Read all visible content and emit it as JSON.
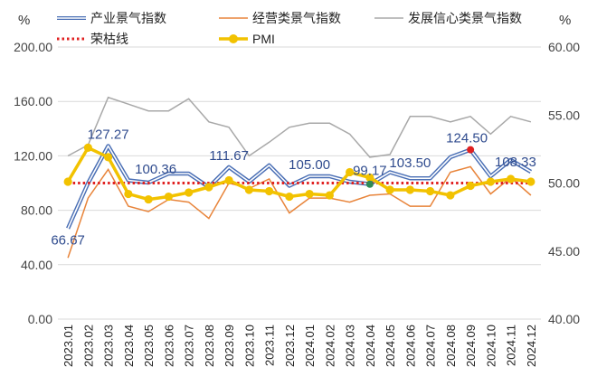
{
  "chart_data": {
    "type": "line",
    "title": "",
    "x": [
      "2023.01",
      "2023.02",
      "2023.03",
      "2023.04",
      "2023.05",
      "2023.06",
      "2023.07",
      "2023.08",
      "2023.09",
      "2023.10",
      "2023.11",
      "2023.12",
      "2024.01",
      "2024.02",
      "2024.03",
      "2024.04",
      "2024.05",
      "2024.06",
      "2024.07",
      "2024.08",
      "2024.09",
      "2024.10",
      "2024.11",
      "2024.12"
    ],
    "left_axis": {
      "unit": "%",
      "ylim": [
        0,
        200
      ],
      "ticks": [
        "0.00",
        "40.00",
        "80.00",
        "120.00",
        "160.00",
        "200.00"
      ]
    },
    "right_axis": {
      "unit": "%",
      "ylim": [
        40,
        60
      ],
      "ticks": [
        "40.00",
        "45.00",
        "50.00",
        "55.00",
        "60.00"
      ]
    },
    "grid": "horizontal",
    "legend_position": "top",
    "series": [
      {
        "name": "产业景气指数",
        "axis": "left",
        "style": "double-line",
        "color": "#4a6fb5",
        "values": [
          66.67,
          100,
          127.27,
          102,
          100.36,
          107,
          107,
          97,
          111.67,
          101,
          113,
          98,
          105.0,
          105,
          101,
          99.17,
          108,
          103.5,
          103.5,
          119,
          124.5,
          105,
          117,
          108.33
        ]
      },
      {
        "name": "经营类景气指数",
        "axis": "left",
        "style": "line",
        "color": "#e8843a",
        "values": [
          45,
          89,
          110,
          83,
          79,
          88,
          86,
          74,
          100,
          96,
          103,
          78,
          89,
          89,
          86,
          91,
          92,
          83,
          83,
          108,
          112,
          92,
          104,
          91
        ]
      },
      {
        "name": "发展信心类景气指数",
        "axis": "left",
        "style": "line",
        "color": "#a8a8a8",
        "values": [
          120,
          128,
          163,
          158,
          153,
          153,
          162,
          145,
          141,
          120,
          130,
          141,
          144,
          144,
          136,
          119,
          121,
          149,
          149,
          145,
          149,
          136,
          149,
          145
        ]
      },
      {
        "name": "荣枯线",
        "axis": "left",
        "style": "dotted",
        "color": "#e02020",
        "values": [
          100,
          100,
          100,
          100,
          100,
          100,
          100,
          100,
          100,
          100,
          100,
          100,
          100,
          100,
          100,
          100,
          100,
          100,
          100,
          100,
          100,
          100,
          100,
          100
        ]
      },
      {
        "name": "PMI",
        "axis": "right",
        "style": "line-markers",
        "color": "#f2c200",
        "values": [
          50.1,
          52.6,
          51.9,
          49.2,
          48.8,
          49.0,
          49.3,
          49.7,
          50.2,
          49.5,
          49.4,
          49.0,
          49.2,
          49.1,
          50.8,
          50.4,
          49.5,
          49.5,
          49.4,
          49.1,
          49.8,
          50.1,
          50.3,
          50.1
        ]
      }
    ],
    "data_labels": [
      {
        "index": 0,
        "text": "66.67"
      },
      {
        "index": 2,
        "text": "127.27"
      },
      {
        "index": 4,
        "text": "100.36"
      },
      {
        "index": 8,
        "text": "111.67"
      },
      {
        "index": 12,
        "text": "105.00"
      },
      {
        "index": 15,
        "text": "99.17"
      },
      {
        "index": 17,
        "text": "103.50"
      },
      {
        "index": 20,
        "text": "124.50"
      },
      {
        "index": 23,
        "text": "108.33"
      }
    ],
    "highlight_points": [
      {
        "index": 15,
        "color": "#2e8b57"
      },
      {
        "index": 20,
        "color": "#e02020"
      }
    ]
  }
}
